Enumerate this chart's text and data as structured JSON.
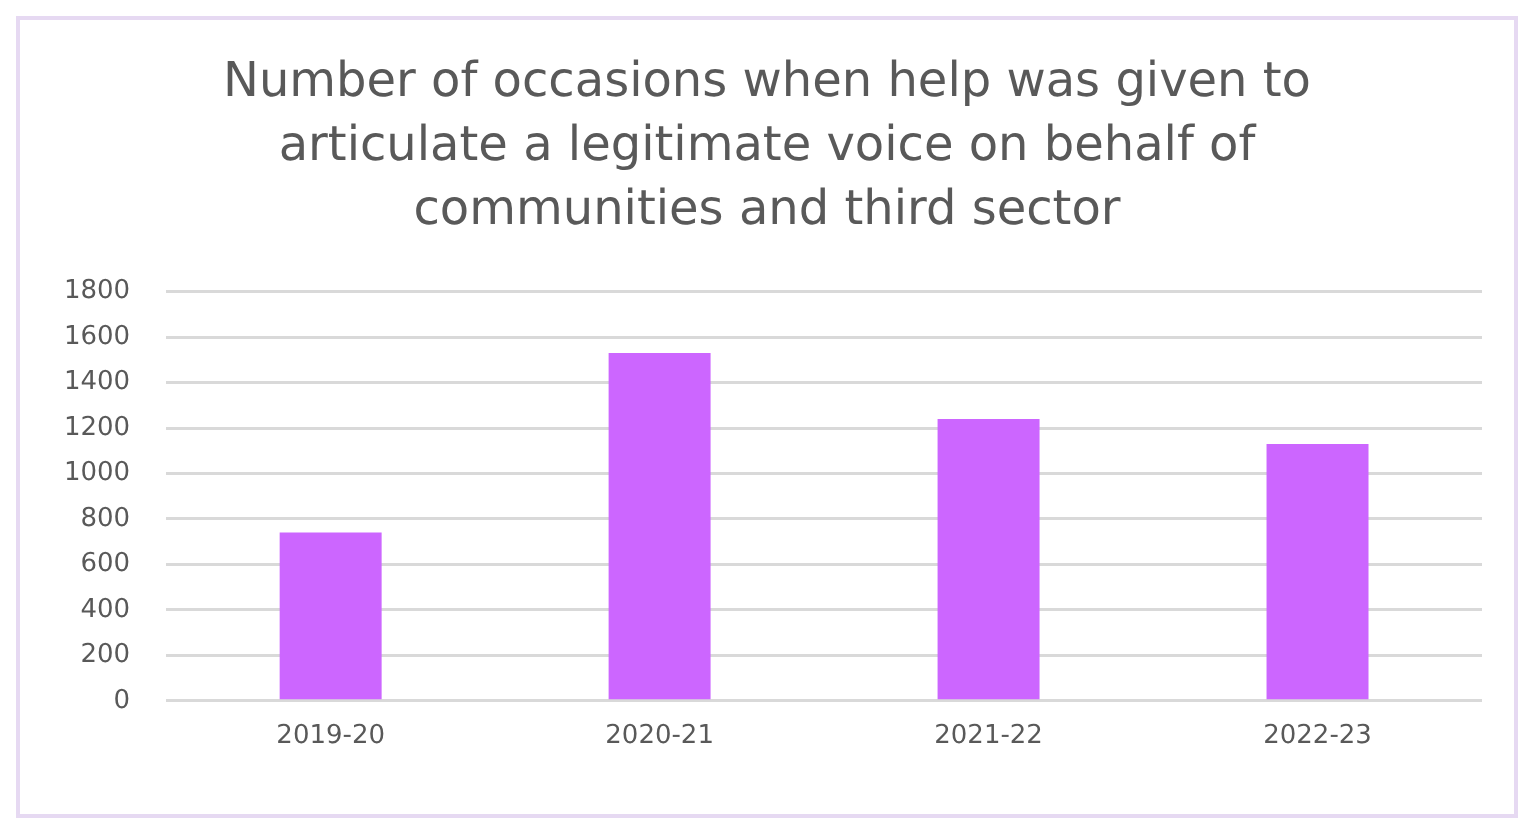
{
  "chart_data": {
    "type": "bar",
    "title": "Number of occasions when help was given to articulate a legitimate voice on behalf of communities and third sector",
    "categories": [
      "2019-20",
      "2020-21",
      "2021-22",
      "2022-23"
    ],
    "values": [
      740,
      1530,
      1240,
      1130
    ],
    "color": "#cc66ff",
    "ylim": [
      0,
      1800
    ],
    "yticks": [
      0,
      200,
      400,
      600,
      800,
      1000,
      1200,
      1400,
      1600,
      1800
    ],
    "grid": "y",
    "legend": false
  }
}
